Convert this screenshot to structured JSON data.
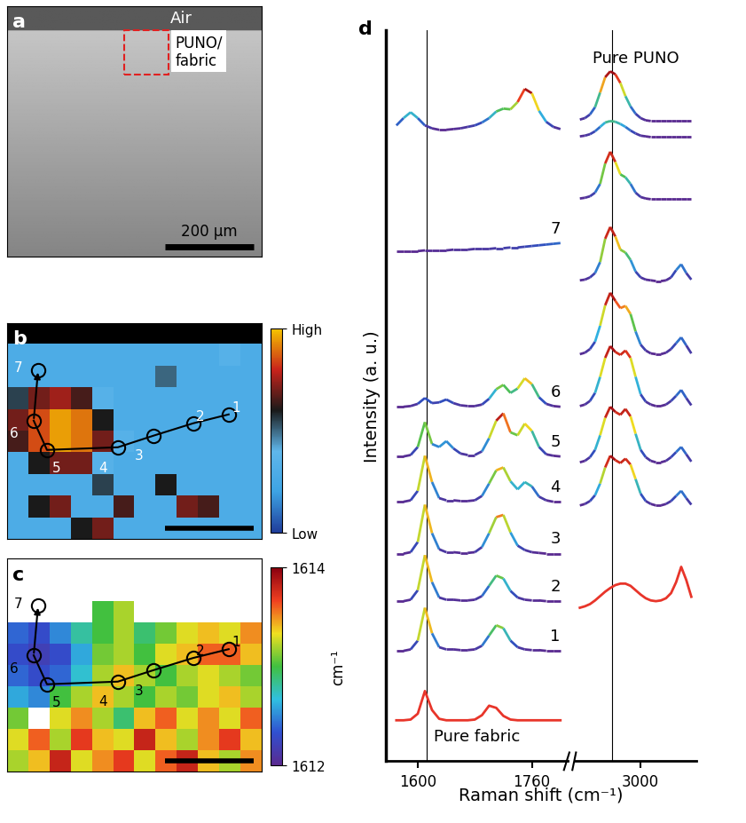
{
  "chart_data": [
    {
      "type": "image",
      "panel": "a",
      "annotations": [
        "Air",
        "PUNO/\nfabric"
      ],
      "xlim": [
        0,
        574
      ],
      "ylim": [
        0,
        564
      ],
      "tick_labels": false,
      "scale_bar": 200,
      "scale_bar_label": "200 μm"
    },
    {
      "type": "heatmap",
      "panel": "b",
      "xlim": [
        0,
        574
      ],
      "ylim": [
        0,
        486
      ],
      "tick_labels": false,
      "cells": [
        [
          null,
          null,
          null,
          null,
          null,
          null,
          null,
          null,
          null,
          null,
          null,
          null
        ],
        [
          0.3,
          0.3,
          0.3,
          0.3,
          0.3,
          0.3,
          0.3,
          0.3,
          0.3,
          0.3,
          0.35,
          0.3
        ],
        [
          0.3,
          0.3,
          0.3,
          0.3,
          0.3,
          0.3,
          0.3,
          0.5,
          0.3,
          0.3,
          0.3,
          0.3
        ],
        [
          0.55,
          0.7,
          0.75,
          0.65,
          0.35,
          0.3,
          0.3,
          0.3,
          0.3,
          0.3,
          0.3,
          0.3
        ],
        [
          0.7,
          0.85,
          0.95,
          0.9,
          0.6,
          0.3,
          0.3,
          0.3,
          0.3,
          0.3,
          0.3,
          0.3
        ],
        [
          0.65,
          0.85,
          0.95,
          0.9,
          0.7,
          0.35,
          0.3,
          0.3,
          0.3,
          0.3,
          0.3,
          0.3
        ],
        [
          0.3,
          0.6,
          0.7,
          0.7,
          0.35,
          0.3,
          0.3,
          0.3,
          0.3,
          0.3,
          0.3,
          0.3
        ],
        [
          0.3,
          0.3,
          0.3,
          0.3,
          0.55,
          0.3,
          0.3,
          0.6,
          0.3,
          0.3,
          0.3,
          0.3
        ],
        [
          0.3,
          0.6,
          0.7,
          0.3,
          0.3,
          0.65,
          0.3,
          0.3,
          0.7,
          0.65,
          0.3,
          0.3
        ],
        [
          0.3,
          0.3,
          0.3,
          0.6,
          0.7,
          0.3,
          0.3,
          0.3,
          0.3,
          0.3,
          0.3,
          0.3
        ]
      ],
      "colorbar_lim": [
        0,
        1
      ],
      "colorbar_ticks": [
        {
          "value": 0,
          "label": "Low"
        },
        {
          "value": 1,
          "label": "High"
        }
      ],
      "points": {
        "labels": [
          "1",
          "2",
          "3",
          "4",
          "5",
          "6",
          "7"
        ],
        "x": [
          500,
          420,
          330,
          250,
          90,
          60,
          70
        ],
        "y": [
          280,
          260,
          232,
          206,
          200,
          266,
          380
        ]
      },
      "scale_bar": 200
    },
    {
      "type": "heatmap",
      "panel": "c",
      "xlim": [
        0,
        574
      ],
      "ylim": [
        0,
        486
      ],
      "tick_labels": false,
      "cells": [
        [
          null,
          null,
          null,
          null,
          null,
          null,
          null,
          null,
          null,
          null,
          null,
          null
        ],
        [
          null,
          null,
          null,
          null,
          null,
          null,
          null,
          null,
          null,
          null,
          null,
          null
        ],
        [
          null,
          null,
          null,
          null,
          1613.0,
          1613.2,
          null,
          null,
          null,
          null,
          null,
          null
        ],
        [
          1612.4,
          1612.3,
          1612.5,
          1612.8,
          1613.0,
          1613.2,
          1612.9,
          1613.1,
          1613.3,
          1613.4,
          1613.3,
          1613.5
        ],
        [
          1612.3,
          1612.2,
          1612.3,
          1612.6,
          1613.1,
          1613.2,
          1613.0,
          1613.3,
          1613.4,
          1613.6,
          1613.6,
          1613.4
        ],
        [
          1612.4,
          1612.3,
          1612.4,
          1612.7,
          1613.2,
          1613.4,
          1613.2,
          1613.0,
          1613.2,
          1613.3,
          1613.2,
          1613.1
        ],
        [
          1612.6,
          1612.5,
          1613.0,
          1613.2,
          1613.4,
          1613.2,
          1613.0,
          1613.2,
          1613.1,
          1613.3,
          1613.4,
          1613.2
        ],
        [
          1613.1,
          null,
          1613.3,
          1613.5,
          1613.2,
          1612.9,
          1613.4,
          1613.6,
          1613.3,
          1613.5,
          1613.3,
          1613.6
        ],
        [
          1613.3,
          1613.6,
          1613.2,
          1613.7,
          1613.4,
          1613.3,
          1613.8,
          1613.4,
          1613.2,
          1613.5,
          1613.7,
          1613.4
        ],
        [
          1613.2,
          1613.4,
          1613.8,
          1613.3,
          1613.5,
          1613.7,
          1613.3,
          1613.6,
          1613.8,
          1613.4,
          1613.2,
          1613.5
        ]
      ],
      "colorbar_lim": [
        1612,
        1614
      ],
      "colorbar_ticks": [
        1612,
        1614
      ],
      "colorbar_label": "cm⁻¹",
      "points": {
        "labels": [
          "1",
          "2",
          "3",
          "4",
          "5",
          "6",
          "7"
        ],
        "x": [
          500,
          420,
          330,
          250,
          90,
          60,
          70
        ],
        "y": [
          280,
          260,
          232,
          206,
          200,
          266,
          380
        ]
      },
      "scale_bar": 200
    },
    {
      "type": "line",
      "panel": "d",
      "x_label": "Raman shift (cm⁻¹)",
      "y_label": "Intensity (a. u.)",
      "xlim": [
        [
          1555,
          1810
        ],
        [
          2870,
          3110
        ]
      ],
      "xticks": [
        [
          1600,
          1760
        ],
        [
          3000
        ]
      ],
      "ylim": [
        0,
        100
      ],
      "tick_labels": "x",
      "vlines": [
        1612,
        2944
      ],
      "x": [
        1570,
        1580,
        1590,
        1600,
        1610,
        1620,
        1630,
        1640,
        1650,
        1660,
        1670,
        1680,
        1690,
        1700,
        1710,
        1720,
        1730,
        1740,
        1750,
        1760,
        1770,
        1780,
        1790,
        1800,
        2880,
        2890,
        2900,
        2910,
        2920,
        2930,
        2940,
        2950,
        2960,
        2970,
        2980,
        2990,
        3000,
        3010,
        3020,
        3030,
        3040,
        3050,
        3060,
        3070,
        3080,
        3090,
        3100
      ],
      "series": [
        {
          "name": "Pure fabric",
          "color": "#e8352a",
          "values": [
            5.6,
            5.6,
            5.7,
            6.5,
            9.6,
            7.0,
            5.8,
            5.6,
            5.6,
            5.6,
            5.6,
            5.7,
            6.3,
            7.6,
            7.3,
            6.2,
            5.7,
            5.6,
            5.6,
            5.6,
            5.6,
            5.6,
            5.6,
            5.6,
            21.0,
            21.2,
            21.5,
            22.0,
            22.6,
            23.2,
            23.7,
            24.1,
            24.3,
            24.3,
            24.0,
            23.4,
            22.8,
            22.3,
            22.0,
            21.9,
            22.0,
            22.3,
            23.0,
            24.5,
            26.6,
            24.8,
            22.5
          ]
        },
        {
          "name": "1",
          "values": [
            15.1,
            15.1,
            15.3,
            16.5,
            21.0,
            17.5,
            15.6,
            15.3,
            15.3,
            15.2,
            15.2,
            15.3,
            15.8,
            17.2,
            18.6,
            18.2,
            16.5,
            15.6,
            15.3,
            15.2,
            15.2,
            15.1,
            15.1,
            15.1,
            35.0,
            35.2,
            35.6,
            36.4,
            38.0,
            40.2,
            41.8,
            41.2,
            40.8,
            41.4,
            40.6,
            38.6,
            36.6,
            35.6,
            35.2,
            35.0,
            35.0,
            35.2,
            35.6,
            36.3,
            37.0,
            36.0,
            35.1
          ]
        },
        {
          "name": "2",
          "values": [
            21.9,
            21.9,
            22.1,
            23.4,
            28.2,
            24.5,
            22.4,
            22.1,
            22.1,
            22.0,
            22.0,
            22.1,
            22.6,
            24.0,
            25.4,
            25.0,
            23.3,
            22.4,
            22.1,
            22.0,
            22.0,
            21.9,
            21.9,
            21.9,
            40.9,
            41.1,
            41.6,
            42.6,
            44.6,
            47.0,
            48.5,
            47.8,
            47.4,
            48.2,
            47.2,
            44.8,
            42.6,
            41.6,
            41.1,
            40.9,
            40.9,
            41.1,
            41.6,
            42.3,
            43.0,
            42.0,
            41.0
          ]
        },
        {
          "name": "3",
          "values": [
            28.4,
            28.4,
            28.6,
            30.0,
            35.1,
            31.2,
            29.0,
            28.6,
            28.6,
            28.5,
            28.5,
            28.6,
            29.3,
            31.2,
            33.4,
            33.7,
            31.3,
            29.5,
            28.9,
            28.6,
            28.5,
            28.4,
            28.4,
            28.4,
            48.6,
            48.8,
            49.3,
            50.4,
            52.6,
            55.2,
            56.8,
            56.0,
            55.6,
            56.2,
            55.2,
            52.6,
            50.2,
            49.2,
            48.8,
            48.6,
            48.6,
            48.8,
            49.3,
            50.0,
            50.8,
            49.7,
            48.7
          ]
        },
        {
          "name": "4",
          "values": [
            35.5,
            35.5,
            35.7,
            37.0,
            41.8,
            38.2,
            36.0,
            35.7,
            35.7,
            35.6,
            35.6,
            35.7,
            36.3,
            38.0,
            39.8,
            40.2,
            38.3,
            37.2,
            38.2,
            37.6,
            36.2,
            35.7,
            35.5,
            35.5,
            55.7,
            55.9,
            56.4,
            57.4,
            59.6,
            62.4,
            64.1,
            63.0,
            62.0,
            62.3,
            61.2,
            58.8,
            57.0,
            56.2,
            55.8,
            55.7,
            55.7,
            55.9,
            56.4,
            57.2,
            58.0,
            56.9,
            55.8
          ]
        },
        {
          "name": "5",
          "values": [
            41.7,
            41.7,
            41.9,
            43.0,
            46.4,
            43.4,
            43.0,
            43.8,
            42.8,
            42.1,
            41.9,
            41.9,
            42.4,
            44.2,
            46.6,
            47.6,
            45.0,
            44.6,
            46.2,
            45.2,
            43.0,
            42.0,
            41.8,
            41.7,
            65.8,
            65.9,
            66.2,
            66.8,
            68.3,
            71.5,
            73.1,
            71.8,
            70.0,
            69.6,
            68.6,
            67.0,
            66.2,
            65.9,
            65.8,
            65.7,
            65.7,
            65.8,
            66.2,
            67.2,
            68.0,
            66.8,
            65.9
          ]
        },
        {
          "name": "6",
          "values": [
            48.5,
            48.5,
            48.6,
            48.9,
            49.7,
            49.0,
            49.1,
            49.5,
            49.0,
            48.7,
            48.6,
            48.6,
            48.8,
            49.6,
            50.9,
            51.5,
            50.4,
            51.0,
            52.4,
            51.6,
            49.8,
            48.9,
            48.6,
            48.5,
            77.0,
            77.1,
            77.3,
            77.8,
            79.0,
            81.8,
            83.4,
            82.0,
            80.3,
            79.9,
            79.0,
            77.8,
            77.2,
            77.0,
            76.9,
            76.9,
            76.9,
            76.9,
            76.9,
            76.9,
            76.9,
            76.9,
            76.9
          ]
        },
        {
          "name": "7",
          "values": [
            69.8,
            69.8,
            69.8,
            69.8,
            69.9,
            69.9,
            69.9,
            69.9,
            70.0,
            70.0,
            70.0,
            70.1,
            70.1,
            70.1,
            70.2,
            70.2,
            70.3,
            70.3,
            70.4,
            70.5,
            70.6,
            70.7,
            70.8,
            70.9,
            85.5,
            85.6,
            85.8,
            86.2,
            86.8,
            87.4,
            87.6,
            87.5,
            87.2,
            86.8,
            86.3,
            85.9,
            85.6,
            85.5,
            85.4,
            85.4,
            85.4,
            85.4,
            85.4,
            85.4,
            85.4,
            85.4,
            85.4
          ]
        },
        {
          "name": "Pure PUNO",
          "values": [
            87.0,
            88.0,
            88.8,
            88.0,
            87.0,
            86.6,
            86.4,
            86.4,
            86.5,
            86.6,
            86.8,
            87.0,
            87.4,
            88.0,
            88.9,
            89.3,
            89.2,
            90.2,
            92.0,
            91.4,
            89.0,
            87.5,
            86.8,
            86.5,
            87.8,
            88.0,
            88.5,
            89.5,
            91.5,
            93.6,
            94.4,
            94.0,
            92.8,
            91.0,
            89.6,
            88.6,
            88.0,
            87.7,
            87.6,
            87.6,
            87.6,
            87.6,
            87.6,
            87.6,
            87.6,
            87.6,
            87.6
          ]
        }
      ]
    }
  ]
}
